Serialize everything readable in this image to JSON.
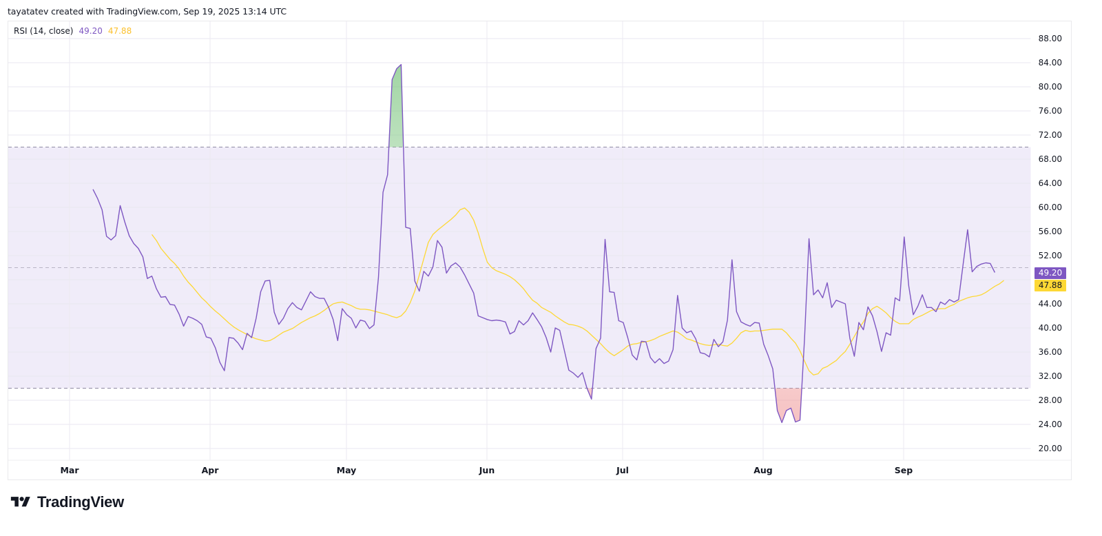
{
  "header": {
    "attribution": "tayatatev created with TradingView.com, Sep 19, 2025 13:14 UTC"
  },
  "legend": {
    "indicator_name": "RSI (14, close)",
    "rsi_value": "49.20",
    "ma_value": "47.88"
  },
  "price_badges": {
    "rsi": "49.20",
    "ma": "47.88"
  },
  "colors": {
    "rsi_line": "#7e57c2",
    "ma_line": "#fdd835",
    "band_fill": "#f0ecf9",
    "overbought_fill": "#a5d6a7",
    "oversold_fill": "#f8c8c8",
    "dashed_level": "#9e9eae",
    "grid": "#f0f0f3"
  },
  "y_axis": {
    "ticks": [
      "88.00",
      "84.00",
      "80.00",
      "76.00",
      "72.00",
      "68.00",
      "64.00",
      "60.00",
      "56.00",
      "52.00",
      "44.00",
      "40.00",
      "36.00",
      "32.00",
      "28.00",
      "24.00",
      "20.00"
    ]
  },
  "x_axis": {
    "ticks": [
      "Mar",
      "Apr",
      "May",
      "Jun",
      "Jul",
      "Aug",
      "Sep"
    ]
  },
  "footer": {
    "logo_text": "TradingView"
  },
  "chart_data": {
    "type": "line",
    "title": "RSI (14, close)",
    "xlabel": "",
    "ylabel": "",
    "ylim": [
      18,
      90
    ],
    "grid": true,
    "legend_position": "top-left",
    "x_ticks": [
      "Mar",
      "Apr",
      "May",
      "Jun",
      "Jul",
      "Aug",
      "Sep"
    ],
    "y_ticks": [
      20,
      24,
      28,
      32,
      36,
      40,
      44,
      48,
      52,
      56,
      60,
      64,
      68,
      72,
      76,
      80,
      84,
      88
    ],
    "levels": {
      "upper": 70,
      "middle": 50,
      "lower": 30
    },
    "start_date": "Mar 6",
    "end_date": "Sep 19",
    "last_values": {
      "RSI": 49.2,
      "RSI-based MA": 47.88
    },
    "series": [
      {
        "name": "RSI",
        "color": "#7e57c2",
        "start_index": 0,
        "values": [
          63.0,
          61.5,
          59.6,
          55.2,
          54.6,
          55.3,
          60.3,
          57.6,
          55.3,
          54.0,
          53.2,
          51.8,
          48.2,
          48.6,
          46.5,
          45.1,
          45.2,
          43.9,
          43.8,
          42.3,
          40.3,
          41.9,
          41.6,
          41.2,
          40.6,
          38.5,
          38.3,
          36.7,
          34.3,
          32.9,
          38.4,
          38.3,
          37.5,
          36.4,
          39.1,
          38.4,
          41.6,
          46.0,
          47.8,
          47.9,
          42.6,
          40.6,
          41.6,
          43.2,
          44.2,
          43.4,
          43.0,
          44.5,
          46.0,
          45.2,
          44.9,
          44.9,
          43.4,
          41.4,
          37.9,
          43.2,
          42.2,
          41.6,
          40.0,
          41.3,
          41.1,
          39.9,
          40.5,
          48.4,
          62.5,
          65.4,
          81.2,
          83.0,
          83.7,
          56.7,
          56.5,
          47.8,
          46.1,
          49.4,
          48.6,
          50.1,
          54.5,
          53.4,
          49.1,
          50.3,
          50.8,
          50.1,
          48.8,
          47.3,
          45.8,
          42.0,
          41.7,
          41.4,
          41.2,
          41.3,
          41.2,
          41.0,
          39.0,
          39.4,
          41.2,
          40.5,
          41.2,
          42.5,
          41.4,
          40.2,
          38.4,
          36.0,
          40.0,
          39.6,
          36.3,
          33.0,
          32.5,
          31.8,
          32.6,
          30.0,
          28.2,
          36.6,
          38.3,
          54.7,
          46.0,
          45.9,
          41.2,
          40.9,
          38.4,
          35.5,
          34.7,
          37.8,
          37.7,
          35.1,
          34.2,
          34.9,
          34.1,
          34.5,
          36.4,
          45.4,
          40.0,
          39.2,
          39.5,
          38.2,
          35.9,
          35.7,
          35.2,
          38.1,
          36.9,
          37.7,
          41.3,
          51.3,
          42.7,
          41.0,
          40.6,
          40.3,
          40.9,
          40.8,
          37.3,
          35.4,
          33.2,
          26.3,
          24.3,
          26.3,
          26.7,
          24.4,
          24.7,
          38.2,
          54.8,
          45.5,
          46.3,
          45.0,
          47.5,
          43.4,
          44.6,
          44.3,
          44.0,
          38.3,
          35.3,
          40.9,
          39.7,
          43.5,
          42.0,
          39.4,
          36.1,
          39.2,
          38.8,
          45.0,
          44.5,
          55.1,
          47.0,
          42.2,
          43.6,
          45.5,
          43.4,
          43.4,
          42.7,
          44.3,
          43.9,
          44.7,
          44.3,
          44.7,
          50.6,
          56.3,
          49.3,
          50.2,
          50.6,
          50.8,
          50.7,
          49.2
        ]
      },
      {
        "name": "RSI-based MA",
        "color": "#fdd835",
        "start_index": 13,
        "values": [
          55.5,
          54.5,
          53.2,
          52.3,
          51.4,
          50.7,
          49.8,
          48.6,
          47.6,
          46.8,
          45.9,
          45.0,
          44.3,
          43.5,
          42.8,
          42.2,
          41.5,
          40.8,
          40.2,
          39.7,
          39.3,
          38.9,
          38.5,
          38.2,
          38.0,
          37.8,
          37.9,
          38.3,
          38.8,
          39.3,
          39.6,
          39.9,
          40.4,
          40.9,
          41.3,
          41.7,
          42.0,
          42.4,
          42.9,
          43.5,
          44.0,
          44.2,
          44.3,
          44.0,
          43.7,
          43.3,
          43.1,
          43.1,
          43.0,
          42.8,
          42.6,
          42.4,
          42.2,
          41.9,
          41.7,
          42.0,
          42.8,
          44.2,
          46.1,
          48.8,
          51.5,
          54.2,
          55.5,
          56.2,
          56.8,
          57.4,
          58.0,
          58.7,
          59.6,
          59.9,
          59.2,
          57.9,
          55.8,
          53.2,
          50.9,
          50.0,
          49.5,
          49.2,
          48.9,
          48.5,
          48.0,
          47.3,
          46.5,
          45.5,
          44.6,
          44.1,
          43.4,
          43.0,
          42.6,
          42.0,
          41.5,
          41.0,
          40.6,
          40.5,
          40.3,
          40.0,
          39.5,
          38.8,
          38.1,
          37.4,
          36.6,
          35.9,
          35.4,
          35.9,
          36.4,
          37.0,
          37.3,
          37.4,
          37.6,
          37.7,
          37.9,
          38.2,
          38.6,
          38.9,
          39.2,
          39.5,
          39.3,
          38.8,
          38.2,
          38.0,
          37.7,
          37.4,
          37.2,
          37.1,
          37.2,
          37.3,
          37.1,
          37.0,
          37.5,
          38.3,
          39.2,
          39.6,
          39.4,
          39.5,
          39.5,
          39.6,
          39.7,
          39.8,
          39.8,
          39.8,
          39.2,
          38.3,
          37.5,
          36.2,
          34.5,
          32.9,
          32.2,
          32.4,
          33.3,
          33.6,
          34.1,
          34.6,
          35.4,
          36.1,
          37.3,
          38.6,
          39.9,
          41.0,
          42.4,
          43.2,
          43.6,
          43.1,
          42.5,
          41.7,
          41.1,
          40.7,
          40.7,
          40.7,
          41.4,
          41.8,
          42.1,
          42.5,
          42.9,
          43.1,
          43.2,
          43.2,
          43.6,
          43.9,
          44.4,
          44.7,
          45.0,
          45.2,
          45.3,
          45.5,
          45.9,
          46.4,
          46.9,
          47.3,
          47.88
        ]
      }
    ]
  }
}
